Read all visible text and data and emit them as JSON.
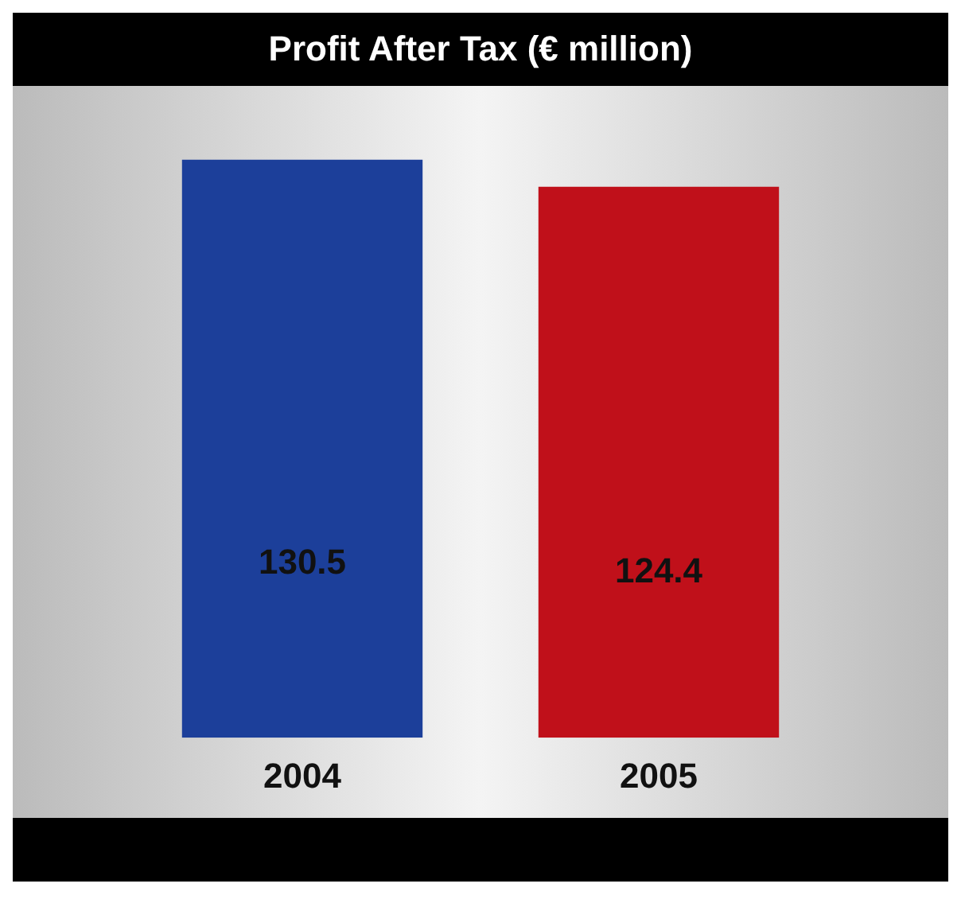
{
  "chart_data": {
    "type": "bar",
    "title": "Profit After Tax (€ million)",
    "categories": [
      "2004",
      "2005"
    ],
    "values": [
      130.5,
      124.4
    ],
    "colors": [
      "#1c3f9a",
      "#c0101a"
    ],
    "data_labels": true,
    "grid": false,
    "legend": false,
    "tick_labels": "x"
  }
}
